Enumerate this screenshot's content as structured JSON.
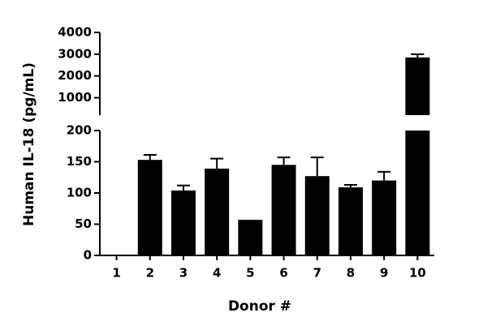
{
  "chart_data": {
    "type": "bar",
    "categories": [
      "1",
      "2",
      "3",
      "4",
      "5",
      "6",
      "7",
      "8",
      "9",
      "10"
    ],
    "values": [
      0,
      153,
      104,
      139,
      57,
      145,
      127,
      109,
      120,
      2850
    ],
    "errors": [
      0,
      8,
      8,
      16,
      0,
      12,
      30,
      4,
      14,
      150
    ],
    "color": "#000000",
    "x_label": "Donor #",
    "y_label": "Human IL-18 (pg/mL)",
    "y_segments": [
      {
        "ylim": [
          0,
          200
        ],
        "yticks": [
          0,
          50,
          100,
          150,
          200
        ]
      },
      {
        "ylim": [
          200,
          4000
        ],
        "yticks": [
          1000,
          2000,
          3000,
          4000
        ]
      }
    ]
  }
}
